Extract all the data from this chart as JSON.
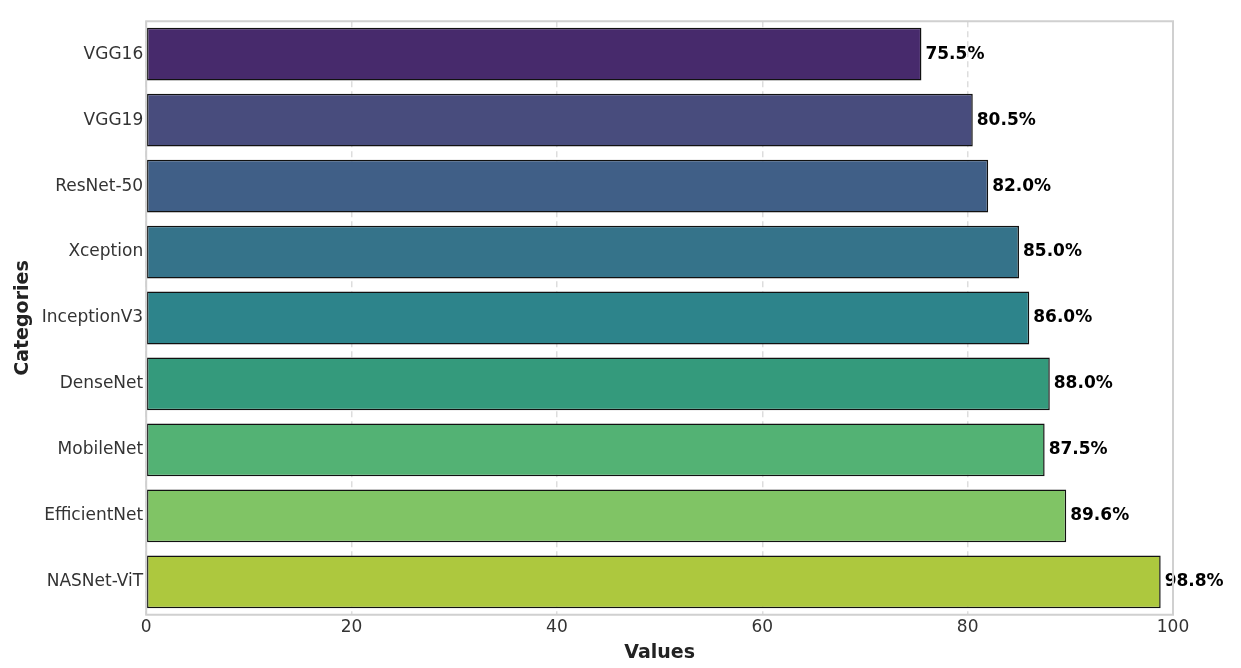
{
  "chart_data": {
    "type": "bar",
    "orientation": "horizontal",
    "xlabel": "Values",
    "ylabel": "Categories",
    "categories": [
      "VGG16",
      "VGG19",
      "ResNet-50",
      "Xception",
      "InceptionV3",
      "DenseNet",
      "MobileNet",
      "EfficientNet",
      "NASNet-ViT"
    ],
    "values": [
      75.5,
      80.5,
      82.0,
      85.0,
      86.0,
      88.0,
      87.5,
      89.6,
      98.8
    ],
    "value_labels": [
      "75.5%",
      "80.5%",
      "82.0%",
      "85.0%",
      "86.0%",
      "88.0%",
      "87.5%",
      "89.6%",
      "98.8%"
    ],
    "colors": [
      "#472a6c",
      "#484c7d",
      "#405f87",
      "#35738a",
      "#2d848b",
      "#349a7c",
      "#53b274",
      "#80c465",
      "#adc83e"
    ],
    "xlim": [
      0,
      100
    ],
    "xticks": [
      0,
      20,
      40,
      60,
      80,
      100
    ],
    "grid": "x",
    "legend": false
  }
}
